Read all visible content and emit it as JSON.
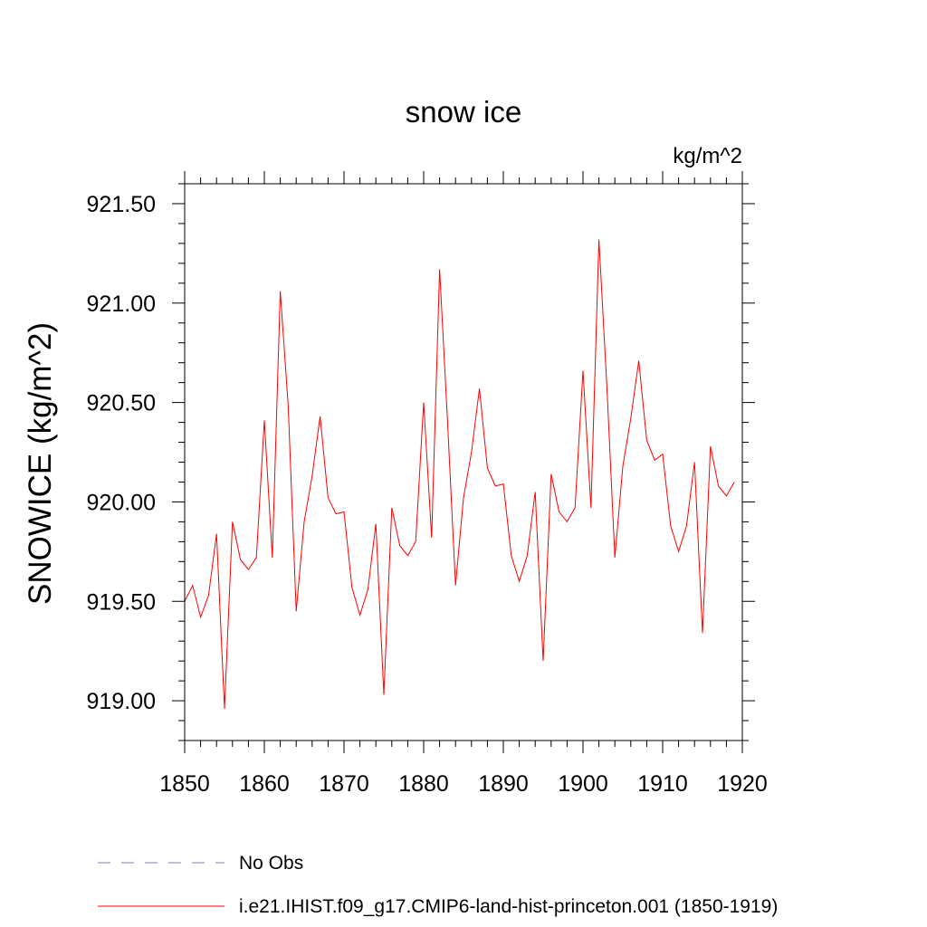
{
  "chart_data": {
    "type": "line",
    "title": "snow ice",
    "units": "kg/m^2",
    "ylabel": "SNOWICE  (kg/m^2)",
    "xlabel": "",
    "xlim": [
      1850,
      1920
    ],
    "ylim": [
      918.8,
      921.6
    ],
    "xticks": [
      1850,
      1860,
      1870,
      1880,
      1890,
      1900,
      1910,
      1920
    ],
    "xtick_labels": [
      "1850",
      "1860",
      "1870",
      "1880",
      "1890",
      "1900",
      "1910",
      "1920"
    ],
    "yticks": [
      919.0,
      919.5,
      920.0,
      920.5,
      921.0,
      921.5
    ],
    "ytick_labels": [
      "919.00",
      "919.50",
      "920.00",
      "920.50",
      "921.00",
      "921.50"
    ],
    "grid": false,
    "legend_position": "bottom",
    "series": [
      {
        "name": "No Obs",
        "color": "#8878b8",
        "dash": "dashed",
        "x": [],
        "values": []
      },
      {
        "name": "i.e21.IHIST.f09_g17.CMIP6-land-hist-princeton.001 (1850-1919)",
        "color": "#ff0000",
        "dash": "solid",
        "x": [
          1850,
          1851,
          1852,
          1853,
          1854,
          1855,
          1856,
          1857,
          1858,
          1859,
          1860,
          1861,
          1862,
          1863,
          1864,
          1865,
          1866,
          1867,
          1868,
          1869,
          1870,
          1871,
          1872,
          1873,
          1874,
          1875,
          1876,
          1877,
          1878,
          1879,
          1880,
          1881,
          1882,
          1883,
          1884,
          1885,
          1886,
          1887,
          1888,
          1889,
          1890,
          1891,
          1892,
          1893,
          1894,
          1895,
          1896,
          1897,
          1898,
          1899,
          1900,
          1901,
          1902,
          1903,
          1904,
          1905,
          1906,
          1907,
          1908,
          1909,
          1910,
          1911,
          1912,
          1913,
          1914,
          1915,
          1916,
          1917,
          1918,
          1919
        ],
        "values": [
          919.5,
          919.58,
          919.42,
          919.53,
          919.84,
          918.96,
          919.9,
          919.71,
          919.66,
          919.72,
          920.41,
          919.72,
          921.06,
          920.48,
          919.45,
          919.9,
          920.13,
          920.43,
          920.02,
          919.94,
          919.95,
          919.57,
          919.43,
          919.56,
          919.89,
          919.03,
          919.97,
          919.78,
          919.73,
          919.8,
          920.5,
          919.82,
          921.17,
          920.4,
          919.58,
          920.02,
          920.25,
          920.57,
          920.17,
          920.08,
          920.09,
          919.73,
          919.6,
          919.73,
          920.05,
          919.2,
          920.14,
          919.95,
          919.9,
          919.97,
          920.66,
          919.97,
          921.32,
          920.58,
          919.72,
          920.18,
          920.42,
          920.71,
          920.31,
          920.21,
          920.24,
          919.88,
          919.75,
          919.88,
          920.2,
          919.34,
          920.28,
          920.08,
          920.03,
          920.1
        ]
      }
    ]
  }
}
